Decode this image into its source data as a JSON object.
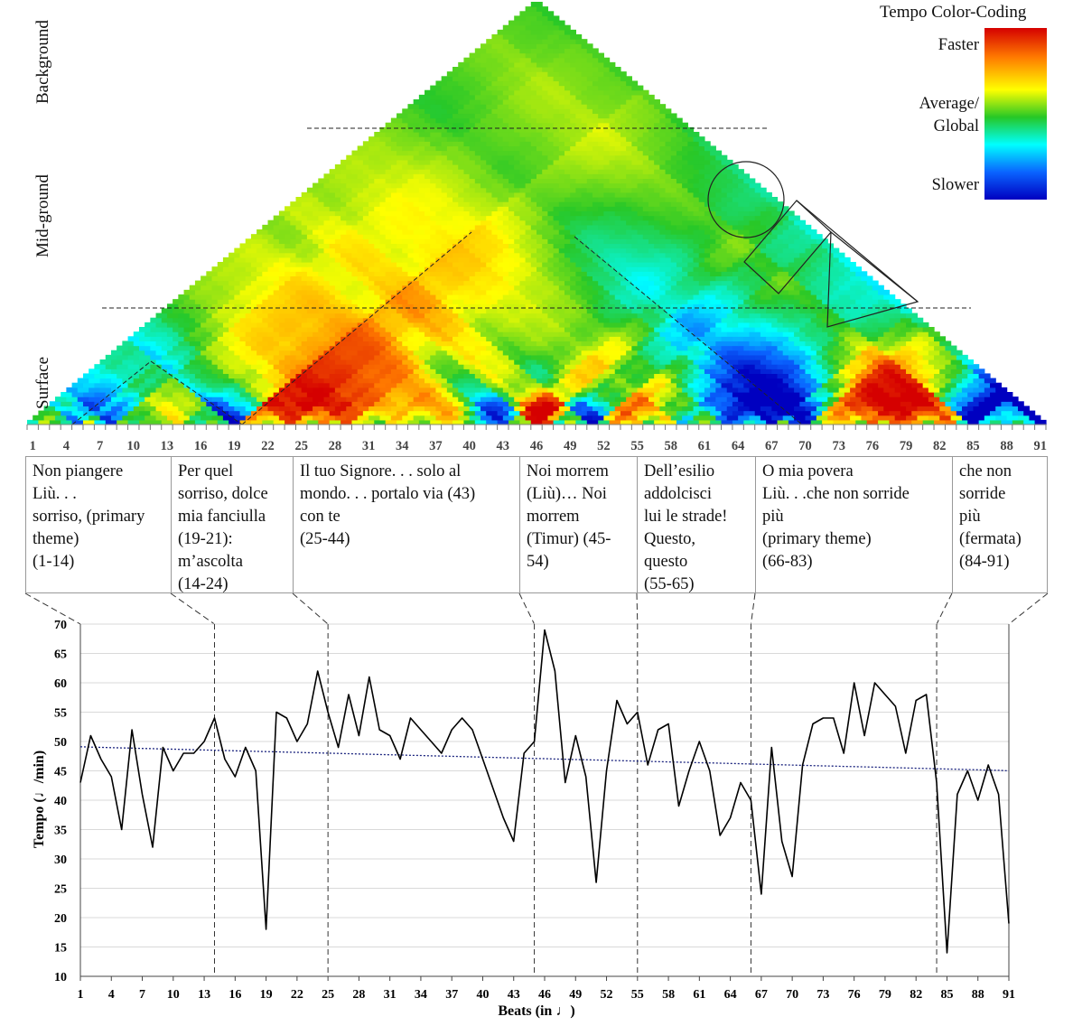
{
  "legend": {
    "title": "Tempo Color-Coding",
    "faster": "Faster",
    "average": [
      "Average/",
      "Global"
    ],
    "slower": "Slower",
    "colors": [
      "#d50000",
      "#ff7a00",
      "#ffff00",
      "#26c826",
      "#00ffff",
      "#0a64ff",
      "#0000c0"
    ]
  },
  "levels": {
    "background": "Background",
    "midground": "Mid-ground",
    "surface": "Surface"
  },
  "triangle_axis_ticks": [
    "1",
    "4",
    "7",
    "10",
    "13",
    "16",
    "19",
    "22",
    "25",
    "28",
    "31",
    "34",
    "37",
    "40",
    "43",
    "46",
    "49",
    "52",
    "55",
    "58",
    "61",
    "64",
    "67",
    "70",
    "73",
    "76",
    "79",
    "82",
    "85",
    "88",
    "91"
  ],
  "segments": [
    {
      "range": [
        1,
        14
      ],
      "lines": [
        "Non piangere",
        "Liù. . .",
        "sorriso, (primary",
        "theme)",
        "(1-14)"
      ]
    },
    {
      "range": [
        14,
        24
      ],
      "lines": [
        "Per quel",
        "sorriso, dolce",
        "mia fanciulla",
        "(19-21):",
        "m’ascolta",
        "(14-24)"
      ]
    },
    {
      "range": [
        25,
        44
      ],
      "lines": [
        "Il tuo Signore. . . solo al",
        "mondo. . . portalo via (43)",
        "con te",
        "(25-44)"
      ]
    },
    {
      "range": [
        45,
        54
      ],
      "lines": [
        "Noi morrem",
        "(Liù)… Noi",
        "morrem",
        "(Timur) (45-",
        "54)"
      ]
    },
    {
      "range": [
        55,
        65
      ],
      "lines": [
        "Dell’esilio",
        "addolcisci",
        "lui le strade!",
        "Questo,",
        "questo",
        "(55-65)"
      ]
    },
    {
      "range": [
        66,
        83
      ],
      "lines": [
        "O mia povera",
        "Liù. . .che non sorride",
        "più",
        "(primary theme)",
        "(66-83)"
      ]
    },
    {
      "range": [
        84,
        91
      ],
      "lines": [
        "che non",
        "sorride",
        "più",
        "(fermata)",
        "(84-91)"
      ]
    }
  ],
  "chart_data": {
    "type": "line",
    "xlabel": "Beats (in ♩)",
    "ylabel": "Tempo (♩/min)",
    "xlim": [
      1,
      91
    ],
    "ylim": [
      10,
      70
    ],
    "yticks": [
      10,
      15,
      20,
      25,
      30,
      35,
      40,
      45,
      50,
      55,
      60,
      65,
      70
    ],
    "xticks": [
      1,
      4,
      7,
      10,
      13,
      16,
      19,
      22,
      25,
      28,
      31,
      34,
      37,
      40,
      43,
      46,
      49,
      52,
      55,
      58,
      61,
      64,
      67,
      70,
      73,
      76,
      79,
      82,
      85,
      88,
      91
    ],
    "section_boundaries": [
      14,
      25,
      45,
      55,
      66,
      84
    ],
    "grid": true,
    "x": [
      1,
      2,
      3,
      4,
      5,
      6,
      7,
      8,
      9,
      10,
      11,
      12,
      13,
      14,
      15,
      16,
      17,
      18,
      19,
      20,
      21,
      22,
      23,
      24,
      25,
      26,
      27,
      28,
      29,
      30,
      31,
      32,
      33,
      34,
      35,
      36,
      37,
      38,
      39,
      40,
      41,
      42,
      43,
      44,
      45,
      46,
      47,
      48,
      49,
      50,
      51,
      52,
      53,
      54,
      55,
      56,
      57,
      58,
      59,
      60,
      61,
      62,
      63,
      64,
      65,
      66,
      67,
      68,
      69,
      70,
      71,
      72,
      73,
      74,
      75,
      76,
      77,
      78,
      79,
      80,
      81,
      82,
      83,
      84,
      85,
      86,
      87,
      88,
      89,
      90,
      91
    ],
    "series": [
      {
        "values": [
          43,
          51,
          47,
          44,
          35,
          52,
          41,
          32,
          49,
          45,
          48,
          48,
          50,
          54,
          47,
          44,
          49,
          45,
          18,
          55,
          54,
          50,
          53,
          62,
          55,
          49,
          58,
          51,
          61,
          52,
          51,
          47,
          54,
          52,
          50,
          48,
          52,
          54,
          52,
          47,
          42,
          37,
          33,
          48,
          50,
          69,
          62,
          43,
          51,
          44,
          26,
          45,
          57,
          53,
          55,
          46,
          52,
          53,
          39,
          45,
          50,
          45,
          34,
          37,
          43,
          40,
          24,
          49,
          33,
          27,
          46,
          53,
          54,
          54,
          48,
          60,
          51,
          60,
          58,
          56,
          48,
          57,
          58,
          43,
          14,
          41,
          45,
          40,
          46,
          41,
          19
        ]
      },
      {
        "values": [
          49.1,
          49.05,
          49.0,
          48.96,
          48.91,
          48.87,
          48.82,
          48.78,
          48.73,
          48.69,
          48.64,
          48.6,
          48.55,
          48.51,
          48.46,
          48.42,
          48.37,
          48.33,
          48.28,
          48.24,
          48.19,
          48.15,
          48.1,
          48.06,
          48.01,
          47.97,
          47.92,
          47.88,
          47.83,
          47.79,
          47.74,
          47.7,
          47.65,
          47.61,
          47.56,
          47.52,
          47.47,
          47.43,
          47.38,
          47.34,
          47.29,
          47.25,
          47.2,
          47.16,
          47.11,
          47.07,
          47.02,
          46.98,
          46.93,
          46.89,
          46.84,
          46.8,
          46.75,
          46.71,
          46.66,
          46.62,
          46.57,
          46.53,
          46.48,
          46.44,
          46.39,
          46.35,
          46.3,
          46.26,
          46.21,
          46.17,
          46.12,
          46.08,
          46.03,
          45.99,
          45.94,
          45.9,
          45.85,
          45.81,
          45.76,
          45.72,
          45.67,
          45.63,
          45.58,
          45.54,
          45.49,
          45.45,
          45.4,
          45.36,
          45.31,
          45.27,
          45.22,
          45.18,
          45.13,
          45.09,
          45.0
        ]
      }
    ]
  }
}
